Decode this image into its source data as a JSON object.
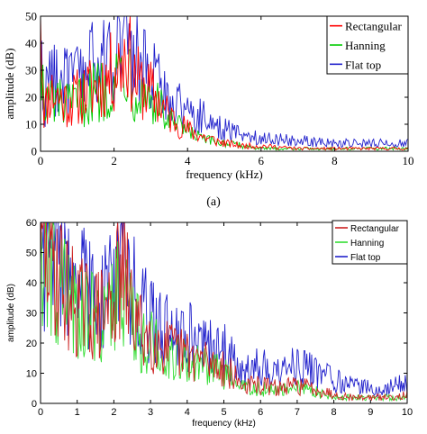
{
  "panel_a_caption": "(a)",
  "chart_data": [
    {
      "type": "line",
      "xlabel": "frequency (kHz)",
      "ylabel": "amplitude (dB)",
      "xlim": [
        0,
        10
      ],
      "ylim": [
        0,
        50
      ],
      "xticks": [
        "0",
        "2",
        "4",
        "6",
        "8",
        "10"
      ],
      "yticks": [
        "0",
        "10",
        "20",
        "30",
        "40",
        "50"
      ],
      "grid": false,
      "legend_position": "top-right",
      "series": [
        {
          "name": "Rectangular",
          "color": "#ff0000",
          "x": [
            0,
            0.1,
            0.25,
            0.5,
            0.75,
            1,
            1.25,
            1.5,
            1.75,
            2,
            2.2,
            2.35,
            2.5,
            2.75,
            3,
            3.25,
            3.5,
            4,
            4.5,
            5,
            5.5,
            6,
            7,
            8,
            9,
            10
          ],
          "values": [
            50,
            14,
            22,
            20,
            18,
            20,
            22,
            24,
            26,
            30,
            33,
            40,
            28,
            24,
            22,
            18,
            13,
            8,
            5,
            3,
            2,
            2,
            1,
            1,
            1,
            1
          ]
        },
        {
          "name": "Hanning",
          "color": "#00cc00",
          "x": [
            0,
            0.1,
            0.25,
            0.5,
            0.75,
            1,
            1.25,
            1.5,
            1.75,
            2,
            2.2,
            2.35,
            2.5,
            2.75,
            3,
            3.25,
            3.5,
            4,
            4.5,
            5,
            5.5,
            6,
            7,
            8,
            9,
            10
          ],
          "values": [
            46,
            12,
            20,
            18,
            16,
            18,
            20,
            22,
            24,
            27,
            30,
            36,
            25,
            22,
            20,
            16,
            11,
            7,
            4,
            3,
            2,
            1,
            1,
            1,
            1,
            1
          ]
        },
        {
          "name": "Flat top",
          "color": "#2222cc",
          "x": [
            0,
            0.1,
            0.25,
            0.5,
            0.75,
            1,
            1.25,
            1.5,
            1.75,
            2,
            2.2,
            2.35,
            2.5,
            2.75,
            3,
            3.25,
            3.5,
            4,
            4.5,
            5,
            5.5,
            6,
            7,
            8,
            9,
            10
          ],
          "values": [
            34,
            18,
            28,
            28,
            25,
            28,
            30,
            32,
            34,
            38,
            42,
            46,
            36,
            32,
            28,
            24,
            20,
            15,
            12,
            8,
            6,
            5,
            4,
            3,
            3,
            3
          ]
        }
      ]
    },
    {
      "type": "line",
      "xlabel": "frequency (kHz)",
      "ylabel": "amplitude (dB)",
      "xlim": [
        0,
        10
      ],
      "ylim": [
        0,
        60
      ],
      "xticks": [
        "0",
        "1",
        "2",
        "3",
        "4",
        "5",
        "6",
        "7",
        "8",
        "9",
        "10"
      ],
      "yticks": [
        "0",
        "10",
        "20",
        "30",
        "40",
        "50",
        "60"
      ],
      "grid": false,
      "legend_position": "top-right",
      "series": [
        {
          "name": "Rectangular",
          "color": "#cc2222",
          "x": [
            0,
            0.25,
            0.5,
            0.75,
            1,
            1.25,
            1.5,
            1.75,
            2,
            2.25,
            2.5,
            2.75,
            3,
            3.5,
            4,
            4.5,
            5,
            5.5,
            6,
            6.5,
            7,
            7.5,
            8,
            8.5,
            9,
            9.5,
            10
          ],
          "values": [
            48,
            50,
            44,
            36,
            33,
            31,
            30,
            29,
            36,
            44,
            30,
            24,
            22,
            18,
            16,
            14,
            12,
            6,
            6,
            5,
            6,
            5,
            3,
            2,
            2,
            2,
            3
          ]
        },
        {
          "name": "Hanning",
          "color": "#33dd33",
          "x": [
            0,
            0.25,
            0.5,
            0.75,
            1,
            1.25,
            1.5,
            1.75,
            2,
            2.25,
            2.5,
            2.75,
            3,
            3.5,
            4,
            4.5,
            5,
            5.5,
            6,
            6.5,
            7,
            7.5,
            8,
            8.5,
            9,
            9.5,
            10
          ],
          "values": [
            46,
            48,
            42,
            34,
            31,
            30,
            29,
            28,
            34,
            42,
            28,
            22,
            20,
            16,
            14,
            12,
            10,
            5,
            5,
            4,
            5,
            4,
            2,
            2,
            2,
            2,
            2
          ]
        },
        {
          "name": "Flat top",
          "color": "#2222cc",
          "x": [
            0,
            0.25,
            0.5,
            0.75,
            1,
            1.25,
            1.5,
            1.75,
            2,
            2.25,
            2.5,
            2.75,
            3,
            3.5,
            4,
            4.5,
            5,
            5.5,
            6,
            6.5,
            7,
            7.5,
            8,
            8.5,
            9,
            9.5,
            10
          ],
          "values": [
            50,
            55,
            52,
            44,
            40,
            38,
            36,
            35,
            42,
            52,
            38,
            30,
            28,
            24,
            22,
            20,
            18,
            12,
            12,
            11,
            13,
            11,
            8,
            6,
            5,
            5,
            7
          ]
        }
      ]
    }
  ]
}
